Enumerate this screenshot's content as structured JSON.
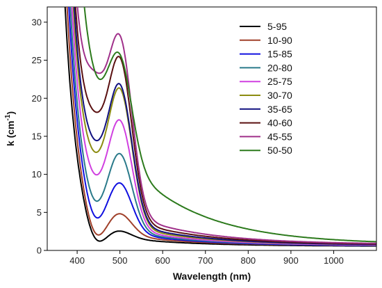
{
  "chart_data": {
    "type": "line",
    "xlabel": "Wavelength (nm)",
    "ylabel_main": "k (cm",
    "ylabel_sup": "-1",
    "ylabel_close": ")",
    "xlim": [
      330,
      1100
    ],
    "ylim": [
      0,
      32
    ],
    "xticks": [
      400,
      500,
      600,
      700,
      800,
      900,
      1000
    ],
    "yticks": [
      0,
      5,
      10,
      15,
      20,
      25,
      30
    ],
    "legend_position": "top-right",
    "curve_model": {
      "tail_decay_nm": 28,
      "tail_start_nm": 330,
      "peak_nm": 500,
      "peak_width_nm": 40,
      "long_tail_decay_nm": 170
    },
    "series": [
      {
        "name": "5-95",
        "color": "#000000",
        "trough_at_440": 1.8,
        "peak_at_500": 2.7,
        "tail_amp": 130,
        "long_tail": 0.6,
        "floor": 0.55
      },
      {
        "name": "10-90",
        "color": "#a0402a",
        "trough_at_440": 2.5,
        "peak_at_500": 5.0,
        "tail_amp": 150,
        "long_tail": 0.8,
        "floor": 0.6
      },
      {
        "name": "15-85",
        "color": "#1010e0",
        "trough_at_440": 4.6,
        "peak_at_500": 9.0,
        "tail_amp": 170,
        "long_tail": 1.0,
        "floor": 0.6
      },
      {
        "name": "20-80",
        "color": "#2a7a8a",
        "trough_at_440": 6.7,
        "peak_at_500": 12.8,
        "tail_amp": 190,
        "long_tail": 1.1,
        "floor": 0.65
      },
      {
        "name": "25-75",
        "color": "#d040e0",
        "trough_at_440": 10.1,
        "peak_at_500": 17.1,
        "tail_amp": 210,
        "long_tail": 1.3,
        "floor": 0.65
      },
      {
        "name": "30-70",
        "color": "#8c8c10",
        "trough_at_440": 13.0,
        "peak_at_500": 21.2,
        "tail_amp": 230,
        "long_tail": 1.5,
        "floor": 0.7
      },
      {
        "name": "35-65",
        "color": "#101080",
        "trough_at_440": 14.6,
        "peak_at_500": 21.7,
        "tail_amp": 240,
        "long_tail": 1.7,
        "floor": 0.7
      },
      {
        "name": "40-60",
        "color": "#5a1010",
        "trough_at_440": 18.3,
        "peak_at_500": 25.1,
        "tail_amp": 250,
        "long_tail": 2.0,
        "floor": 0.75
      },
      {
        "name": "45-55",
        "color": "#a0308a",
        "trough_at_440": 23.6,
        "peak_at_500": 27.8,
        "tail_amp": 260,
        "long_tail": 2.4,
        "floor": 0.8
      },
      {
        "name": "50-50",
        "color": "#2c7a1c",
        "trough_at_440": 23.8,
        "peak_at_500": 25.8,
        "tail_amp": 270,
        "long_tail": 6.5,
        "floor": 0.8
      }
    ]
  }
}
